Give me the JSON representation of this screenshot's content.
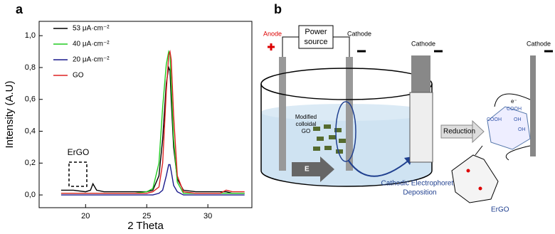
{
  "panel_labels": [
    "a",
    "b"
  ],
  "chart_data": {
    "type": "line",
    "x_label": "2 Theta",
    "y_label": "Intensity (A.U)",
    "x": [
      18,
      19,
      20,
      20.4,
      20.6,
      20.9,
      21.5,
      22,
      23,
      24,
      25,
      25.5,
      26,
      26.3,
      26.6,
      26.8,
      26.9,
      27.0,
      27.2,
      27.5,
      28,
      29,
      30,
      31,
      31.5,
      32,
      33
    ],
    "series": [
      {
        "name": "53 μA·cm⁻²",
        "color": "#000000",
        "values": [
          0.03,
          0.03,
          0.02,
          0.03,
          0.07,
          0.03,
          0.02,
          0.02,
          0.02,
          0.02,
          0.02,
          0.03,
          0.12,
          0.35,
          0.7,
          0.8,
          0.78,
          0.6,
          0.3,
          0.1,
          0.03,
          0.02,
          0.02,
          0.02,
          0.02,
          0.01,
          0.01
        ]
      },
      {
        "name": "40 μA·cm⁻²",
        "color": "#22cc22",
        "values": [
          0.01,
          0.01,
          0.01,
          0.01,
          0.01,
          0.01,
          0.01,
          0.01,
          0.01,
          0.01,
          0.02,
          0.04,
          0.2,
          0.55,
          0.82,
          0.9,
          0.88,
          0.7,
          0.35,
          0.08,
          0.01,
          0.01,
          0.01,
          0.01,
          0.01,
          0.01,
          0.01
        ]
      },
      {
        "name": "20 μA·cm⁻²",
        "color": "#1a1a8c",
        "values": [
          0.0,
          0.0,
          0.0,
          0.0,
          0.0,
          0.0,
          0.0,
          0.0,
          0.0,
          0.0,
          0.0,
          0.0,
          0.01,
          0.03,
          0.12,
          0.19,
          0.19,
          0.15,
          0.06,
          0.02,
          0.0,
          0.0,
          0.0,
          0.0,
          0.0,
          0.0,
          0.0
        ]
      },
      {
        "name": "GO",
        "color": "#dd2222",
        "values": [
          0.01,
          0.01,
          0.01,
          0.01,
          0.01,
          0.01,
          0.01,
          0.01,
          0.01,
          0.01,
          0.01,
          0.02,
          0.05,
          0.2,
          0.65,
          0.88,
          0.9,
          0.85,
          0.5,
          0.12,
          0.02,
          0.01,
          0.01,
          0.01,
          0.03,
          0.02,
          0.02
        ]
      }
    ],
    "xlim": [
      16.2,
      33.6
    ],
    "xticks": [
      20,
      25,
      30
    ],
    "ylim": [
      -0.08,
      1.09
    ],
    "yticks": [
      {
        "value": 0,
        "label": "0,0"
      },
      {
        "value": 0.2,
        "label": "0,2"
      },
      {
        "value": 0.4,
        "label": "0,4"
      },
      {
        "value": 0.6,
        "label": "0,6"
      },
      {
        "value": 0.8,
        "label": "0,8"
      },
      {
        "value": 1.0,
        "label": "1,0"
      }
    ],
    "annotation": "ErGO"
  },
  "diagram": {
    "anode": "Anode",
    "cathodes": [
      "Cathode",
      "Cathode",
      "Cathode"
    ],
    "power_source": [
      "Power",
      "source"
    ],
    "colloid": [
      "Modified",
      "colloidal",
      "GO"
    ],
    "field": "E",
    "process": [
      "Cathodic Electrophoretic",
      "Deposition"
    ],
    "reduction": "Reduction",
    "groups": [
      "COOH",
      "COOH",
      "OH",
      "OH"
    ],
    "electron": "e⁻",
    "product": "ErGO"
  }
}
